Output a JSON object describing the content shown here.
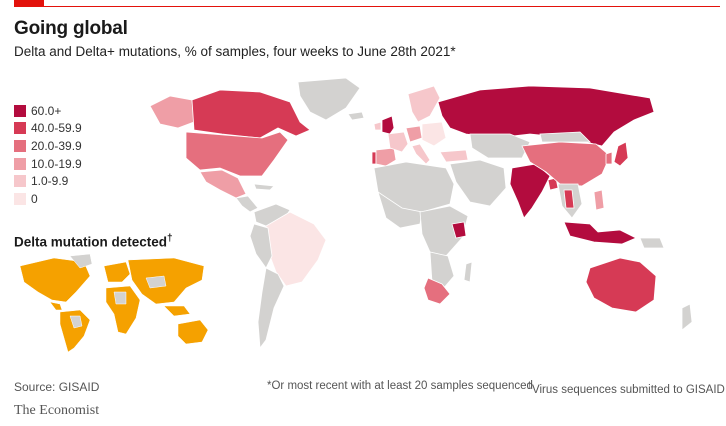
{
  "header": {
    "title": "Going global",
    "subtitle": "Delta and Delta+ mutations, % of samples, four weeks to June 28th 2021*"
  },
  "legend": {
    "items": [
      {
        "label": "60.0+",
        "color": "#b30c3e"
      },
      {
        "label": "40.0-59.9",
        "color": "#d63a55"
      },
      {
        "label": "20.0-39.9",
        "color": "#e56f7e"
      },
      {
        "label": "10.0-19.9",
        "color": "#ef9ea6"
      },
      {
        "label": "1.0-9.9",
        "color": "#f6c7cb"
      },
      {
        "label": "0",
        "color": "#fbe5e5"
      }
    ]
  },
  "inset": {
    "title": "Delta mutation detected",
    "marker": "†",
    "detected_color": "#f5a100",
    "undetected_color": "#d3d2d0"
  },
  "map": {
    "no_data_color": "#d3d2d0",
    "countries": [
      {
        "name": "Russia",
        "band": "60.0+"
      },
      {
        "name": "India",
        "band": "60.0+"
      },
      {
        "name": "United Kingdom",
        "band": "60.0+"
      },
      {
        "name": "Indonesia",
        "band": "60.0+"
      },
      {
        "name": "Kenya",
        "band": "60.0+"
      },
      {
        "name": "Canada",
        "band": "40.0-59.9"
      },
      {
        "name": "Australia",
        "band": "40.0-59.9"
      },
      {
        "name": "Portugal",
        "band": "40.0-59.9"
      },
      {
        "name": "Bangladesh",
        "band": "40.0-59.9"
      },
      {
        "name": "Japan",
        "band": "40.0-59.9"
      },
      {
        "name": "Thailand",
        "band": "40.0-59.9"
      },
      {
        "name": "United States",
        "band": "20.0-39.9"
      },
      {
        "name": "China",
        "band": "20.0-39.9"
      },
      {
        "name": "South Africa",
        "band": "20.0-39.9"
      },
      {
        "name": "Mexico",
        "band": "10.0-19.9"
      },
      {
        "name": "Brazil",
        "band": "0"
      }
    ]
  },
  "footer": {
    "source": "Source: GISAID",
    "note1": "*Or most recent with at least 20 samples sequenced",
    "note2_marker": "†",
    "note2": "Virus sequences submitted to GISAID",
    "brand": "The Economist"
  }
}
